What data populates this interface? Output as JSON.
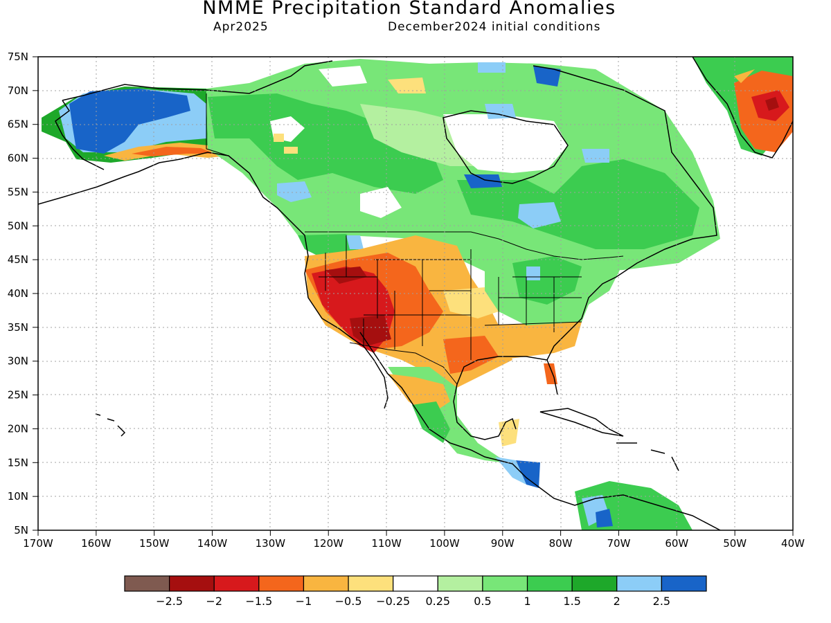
{
  "title": "NMME Precipitation Standard Anomalies",
  "subtitle_left": "Apr2025",
  "subtitle_right": "December2024 initial conditions",
  "latitude_labels": [
    "75N",
    "70N",
    "65N",
    "60N",
    "55N",
    "50N",
    "45N",
    "40N",
    "35N",
    "30N",
    "25N",
    "20N",
    "15N",
    "10N",
    "5N"
  ],
  "longitude_labels": [
    "170W",
    "160W",
    "150W",
    "140W",
    "130W",
    "120W",
    "110W",
    "100W",
    "90W",
    "80W",
    "70W",
    "60W",
    "50W",
    "40W"
  ],
  "colorbar": {
    "colors": [
      "#7f5a50",
      "#a50f0f",
      "#d7191c",
      "#f4661c",
      "#f9b540",
      "#fde07c",
      "#ffffff",
      "#b4f0a0",
      "#78e678",
      "#3ccc50",
      "#1ea82a",
      "#8ccdf7",
      "#1864c8"
    ],
    "labels": [
      "−2.5",
      "−2",
      "−1.5",
      "−1",
      "−0.5",
      "−0.25",
      "0.25",
      "0.5",
      "1",
      "1.5",
      "2",
      "2.5"
    ]
  },
  "map": {
    "lon_range": [
      -170,
      -40
    ],
    "lat_range": [
      5,
      75
    ]
  }
}
